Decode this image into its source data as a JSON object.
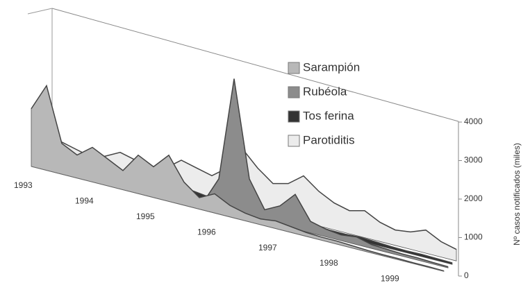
{
  "chart_data": {
    "type": "area3d",
    "y_axis_label": "Nº casos notificados (miles)",
    "categories": [
      "1993",
      null,
      null,
      null,
      "1994",
      null,
      null,
      null,
      "1995",
      null,
      null,
      null,
      "1996",
      null,
      null,
      null,
      "1997",
      null,
      null,
      null,
      "1998",
      null,
      null,
      null,
      "1999",
      null,
      null,
      null
    ],
    "ylim": [
      0,
      4000
    ],
    "yticks": [
      0,
      1000,
      2000,
      3000,
      4000
    ],
    "legend": "upper right",
    "series": [
      {
        "name": "Sarampión",
        "color": "#b8b8b8",
        "values": [
          1500,
          2200,
          800,
          600,
          900,
          700,
          500,
          1000,
          800,
          1200,
          600,
          300,
          500,
          300,
          200,
          150,
          200,
          150,
          100,
          80,
          80,
          60,
          40,
          30,
          30,
          20,
          20,
          10
        ]
      },
      {
        "name": "Rubéola",
        "color": "#8c8c8c",
        "values": [
          200,
          300,
          100,
          100,
          200,
          300,
          100,
          100,
          300,
          500,
          200,
          100,
          800,
          3500,
          1000,
          300,
          500,
          900,
          300,
          200,
          150,
          200,
          100,
          80,
          60,
          60,
          40,
          30
        ]
      },
      {
        "name": "Tos ferina",
        "color": "#333333",
        "values": [
          100,
          200,
          250,
          150,
          150,
          250,
          200,
          150,
          150,
          250,
          200,
          150,
          100,
          200,
          150,
          100,
          100,
          150,
          100,
          80,
          80,
          100,
          80,
          60,
          50,
          60,
          50,
          40
        ]
      },
      {
        "name": "Parotiditis",
        "color": "#ececec",
        "values": [
          300,
          500,
          400,
          300,
          400,
          600,
          500,
          400,
          500,
          800,
          700,
          600,
          900,
          1500,
          1100,
          800,
          900,
          1200,
          900,
          700,
          600,
          700,
          500,
          400,
          450,
          600,
          400,
          300
        ]
      }
    ]
  }
}
